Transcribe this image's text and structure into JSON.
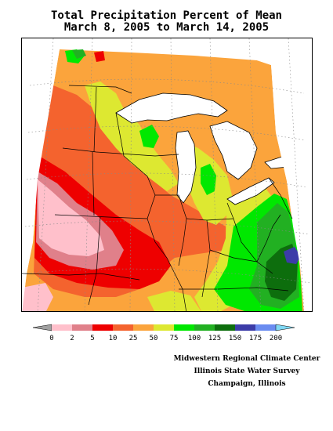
{
  "title": {
    "line1": "Total Precipitation Percent of Mean",
    "line2": "March 8, 2005 to March 14, 2005"
  },
  "legend": {
    "ticks": [
      "0",
      "2",
      "5",
      "10",
      "25",
      "50",
      "75",
      "100",
      "125",
      "150",
      "175",
      "200"
    ],
    "colors": [
      "#ffc0cb",
      "#e0808a",
      "#ee0000",
      "#f4632e",
      "#fba43c",
      "#dde831",
      "#00e800",
      "#22b022",
      "#0d6e0d",
      "#3c3ca8",
      "#6a8cf0"
    ],
    "below_color": "#a0a0a0",
    "above_color": "#80d8f4"
  },
  "credits": {
    "line1": "Midwestern Regional Climate Center",
    "line2": "Illinois State Water Survey",
    "line3": "Champaign, Illinois"
  }
}
